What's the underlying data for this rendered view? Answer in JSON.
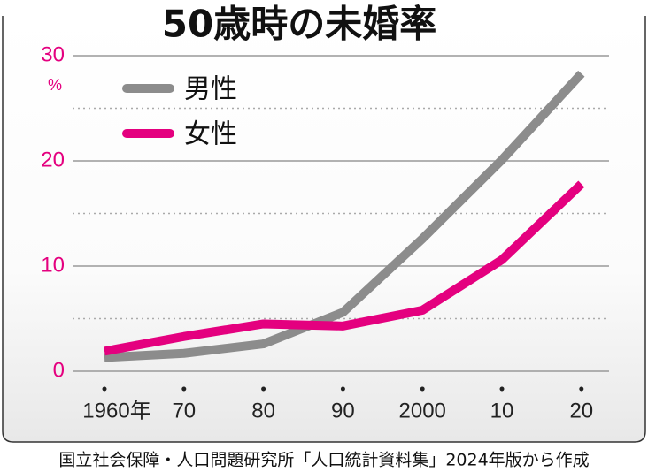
{
  "chart_data": {
    "type": "line",
    "title": "50歳時の未婚率",
    "y_unit": "%",
    "categories": [
      "1960年",
      "70",
      "80",
      "90",
      "2000",
      "10",
      "20"
    ],
    "series": [
      {
        "name": "男性",
        "color": "#8c8c8c",
        "values": [
          1.3,
          1.7,
          2.6,
          5.6,
          12.6,
          20.1,
          28.3
        ]
      },
      {
        "name": "女性",
        "color": "#e4007f",
        "values": [
          1.9,
          3.3,
          4.5,
          4.3,
          5.8,
          10.6,
          17.8
        ]
      }
    ],
    "ylim": [
      0,
      30
    ],
    "yticks": [
      0,
      10,
      20,
      30
    ],
    "minor_yticks": [
      5,
      15,
      25
    ],
    "grid": true,
    "source": "国立社会保障・人口問題研究所「人口統計資料集」2024年版から作成"
  }
}
